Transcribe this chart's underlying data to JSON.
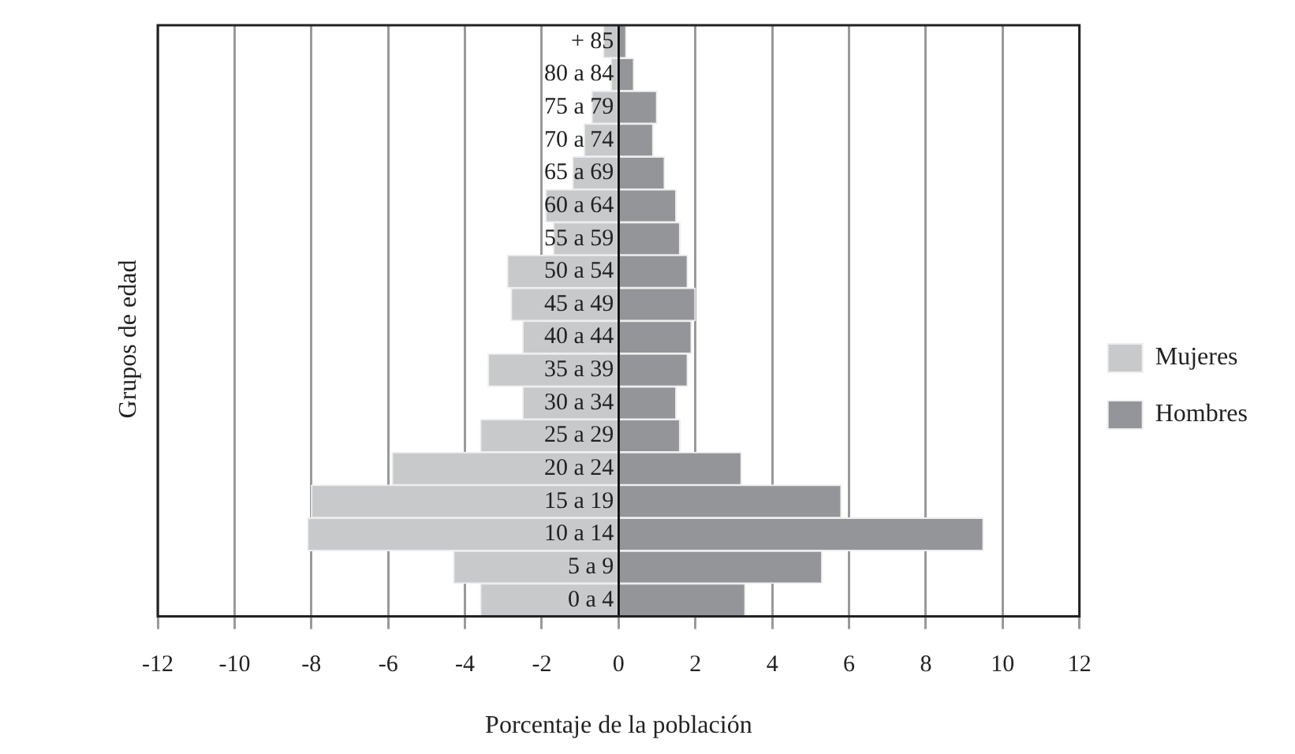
{
  "chart_data": {
    "type": "bar",
    "orientation": "horizontal",
    "xlabel": "Porcentaje de la población",
    "ylabel": "Grupos de edad",
    "categories": [
      "+ 85",
      "80 a 84",
      "75 a 79",
      "70 a 74",
      "65 a 69",
      "60 a 64",
      "55 a 59",
      "50 a 54",
      "45 a 49",
      "40 a 44",
      "35 a 39",
      "30 a 34",
      "25 a 29",
      "20 a 24",
      "15 a 19",
      "10 a 14",
      "5 a 9",
      "0 a 4"
    ],
    "series": [
      {
        "name": "Mujeres",
        "color": "#c8c9cb",
        "values": [
          -0.4,
          -0.2,
          -0.7,
          -0.9,
          -1.2,
          -1.9,
          -1.7,
          -2.9,
          -2.8,
          -2.5,
          -3.4,
          -2.5,
          -3.6,
          -5.9,
          -8.0,
          -8.1,
          -4.3,
          -3.6
        ]
      },
      {
        "name": "Hombres",
        "color": "#939598",
        "values": [
          0.2,
          0.4,
          1.0,
          0.9,
          1.2,
          1.5,
          1.6,
          1.8,
          2.0,
          1.9,
          1.8,
          1.5,
          1.6,
          3.2,
          5.8,
          9.5,
          5.3,
          3.3
        ]
      }
    ],
    "xlim": [
      -12,
      12
    ],
    "xticks": [
      -12,
      -10,
      -8,
      -6,
      -4,
      -2,
      0,
      2,
      4,
      6,
      8,
      10,
      12
    ],
    "grid": "x",
    "legend": "right",
    "stacked": true
  }
}
